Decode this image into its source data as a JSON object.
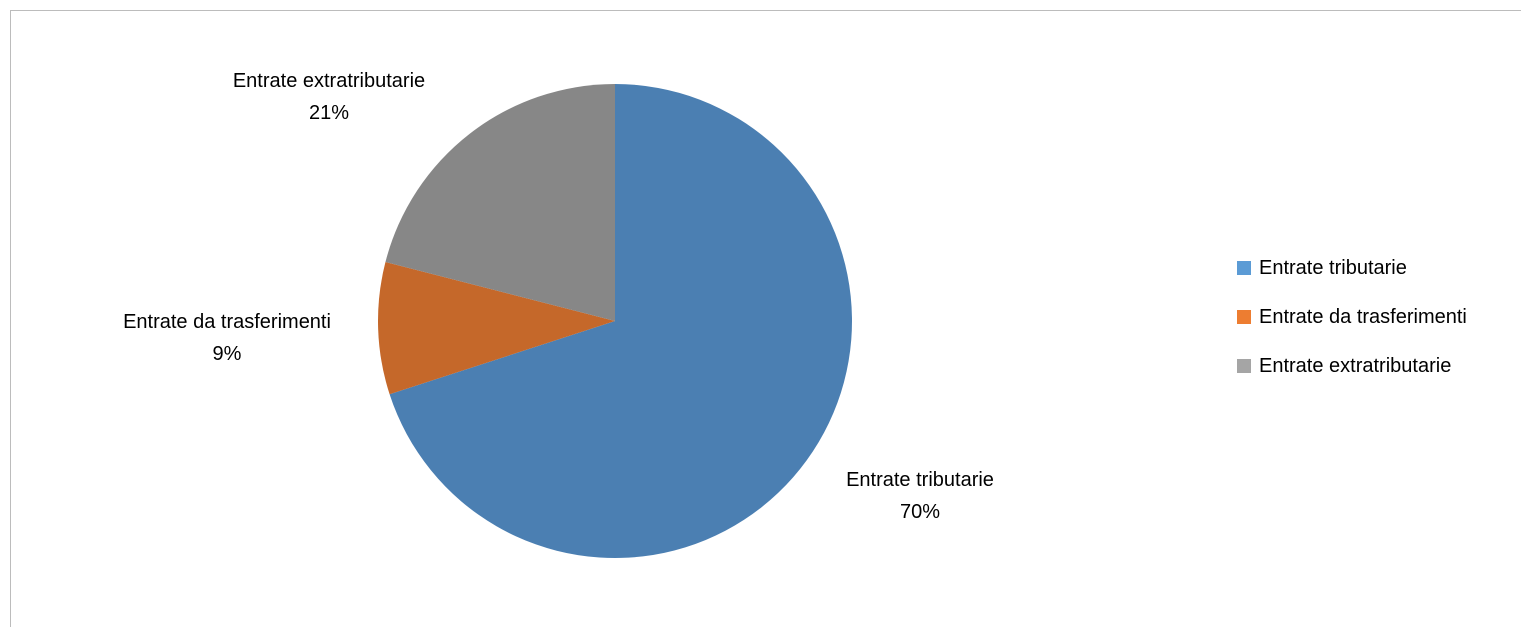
{
  "chart_data": {
    "type": "pie",
    "title": "",
    "slices": [
      {
        "label": "Entrate tributarie",
        "value": 70,
        "percent_label": "70%",
        "color": "#4b7fb2",
        "legend_color": "#5b9bd5"
      },
      {
        "label": "Entrate da trasferimenti",
        "value": 9,
        "percent_label": "9%",
        "color": "#c5682a",
        "legend_color": "#ed7d31"
      },
      {
        "label": "Entrate extratributarie",
        "value": 21,
        "percent_label": "21%",
        "color": "#878787",
        "legend_color": "#a5a5a5"
      }
    ],
    "legend": {
      "position": "right",
      "items": [
        "Entrate tributarie",
        "Entrate da trasferimenti",
        "Entrate extratributarie"
      ]
    }
  }
}
